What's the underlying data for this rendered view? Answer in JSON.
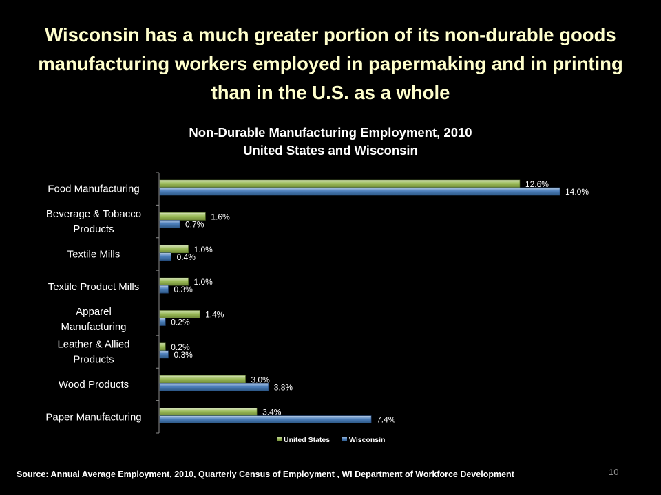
{
  "slide": {
    "title": "Wisconsin has a much greater portion of its non-durable goods manufacturing workers employed in papermaking and in printing than in the U.S. as a whole",
    "source": "Source: Annual Average Employment, 2010,  Quarterly Census of Employment , WI  Department of Workforce Development",
    "page_number": "10"
  },
  "chart_data": {
    "type": "bar",
    "orientation": "horizontal",
    "title": "Non-Durable Manufacturing Employment, 2010",
    "subtitle": "United States and Wisconsin",
    "categories": [
      "Food Manufacturing",
      "Beverage & Tobacco Products",
      "Textile Mills",
      "Textile Product Mills",
      "Apparel Manufacturing",
      "Leather & Allied Products",
      "Wood Products",
      "Paper Manufacturing"
    ],
    "category_label_lines": [
      [
        "Food Manufacturing"
      ],
      [
        "Beverage & Tobacco",
        "Products"
      ],
      [
        "Textile Mills"
      ],
      [
        "Textile Product Mills"
      ],
      [
        "Apparel",
        "Manufacturing"
      ],
      [
        "Leather & Allied",
        "Products"
      ],
      [
        "Wood Products"
      ],
      [
        "Paper Manufacturing"
      ]
    ],
    "series": [
      {
        "name": "United States",
        "color": "#9bbb59",
        "values": [
          12.6,
          1.6,
          1.0,
          1.0,
          1.4,
          0.2,
          3.0,
          3.4
        ],
        "labels": [
          "12.6%",
          "1.6%",
          "1.0%",
          "1.0%",
          "1.4%",
          "0.2%",
          "3.0%",
          "3.4%"
        ]
      },
      {
        "name": "Wisconsin",
        "color": "#4f81bd",
        "values": [
          14.0,
          0.7,
          0.4,
          0.3,
          0.2,
          0.3,
          3.8,
          7.4
        ],
        "labels": [
          "14.0%",
          "0.7%",
          "0.4%",
          "0.3%",
          "0.2%",
          "0.3%",
          "3.8%",
          "7.4%"
        ]
      }
    ],
    "xlim": [
      0,
      14.0
    ],
    "legend_position": "bottom",
    "grid": false
  }
}
